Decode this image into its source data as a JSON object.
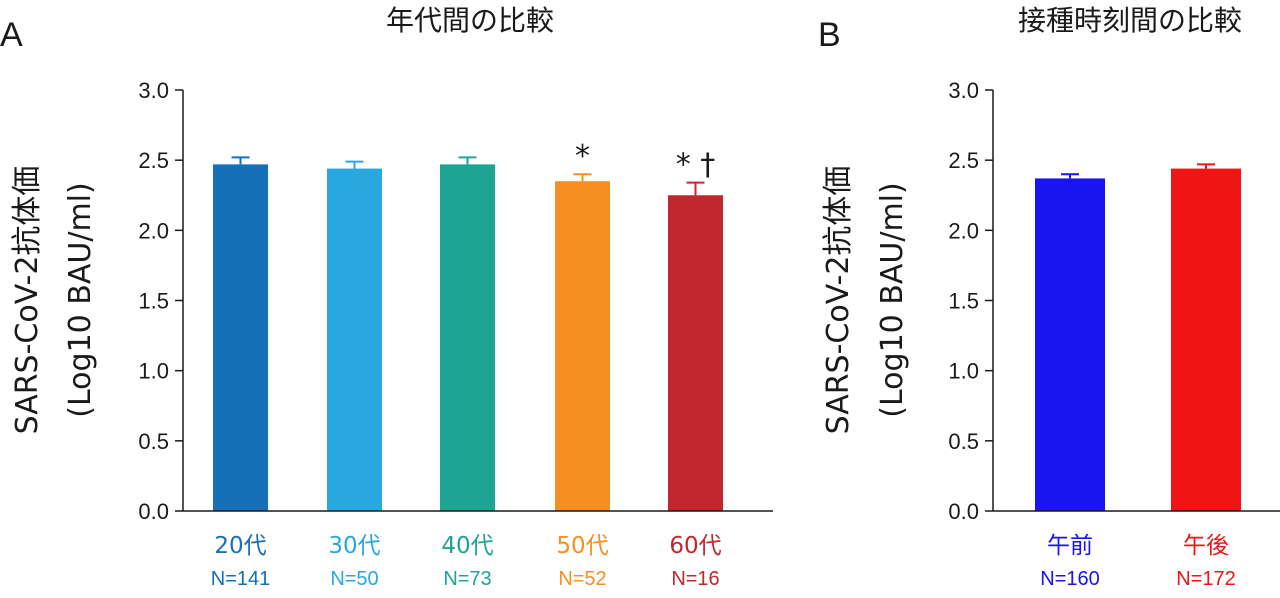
{
  "chart_data": [
    {
      "type": "bar",
      "panel": "A",
      "title": "年代間の比較",
      "ylabel_line1": "SARS-CoV-2抗体価",
      "ylabel_line2": "(Log10 BAU/ml)",
      "ylim": [
        0,
        3.0
      ],
      "yticks": [
        "0.0",
        "0.5",
        "1.0",
        "1.5",
        "2.0",
        "2.5",
        "3.0"
      ],
      "categories": [
        "20代",
        "30代",
        "40代",
        "50代",
        "60代"
      ],
      "n_labels": [
        "N=141",
        "N=50",
        "N=73",
        "N=52",
        "N=16"
      ],
      "values": [
        2.47,
        2.44,
        2.47,
        2.35,
        2.25
      ],
      "errors": [
        0.05,
        0.05,
        0.05,
        0.05,
        0.09
      ],
      "significance": [
        "",
        "",
        "",
        "*",
        "* †"
      ],
      "colors": [
        "#1670b8",
        "#29a8e0",
        "#1ea493",
        "#f58f22",
        "#c1272d"
      ]
    },
    {
      "type": "bar",
      "panel": "B",
      "title": "接種時刻間の比較",
      "ylabel_line1": "SARS-CoV-2抗体価",
      "ylabel_line2": "(Log10 BAU/ml)",
      "ylim": [
        0,
        3.0
      ],
      "yticks": [
        "0.0",
        "0.5",
        "1.0",
        "1.5",
        "2.0",
        "2.5",
        "3.0"
      ],
      "categories": [
        "午前",
        "午後"
      ],
      "n_labels": [
        "N=160",
        "N=172"
      ],
      "values": [
        2.37,
        2.44
      ],
      "errors": [
        0.03,
        0.03
      ],
      "significance": [
        "",
        ""
      ],
      "colors": [
        "#1a14f0",
        "#f01414"
      ]
    }
  ]
}
